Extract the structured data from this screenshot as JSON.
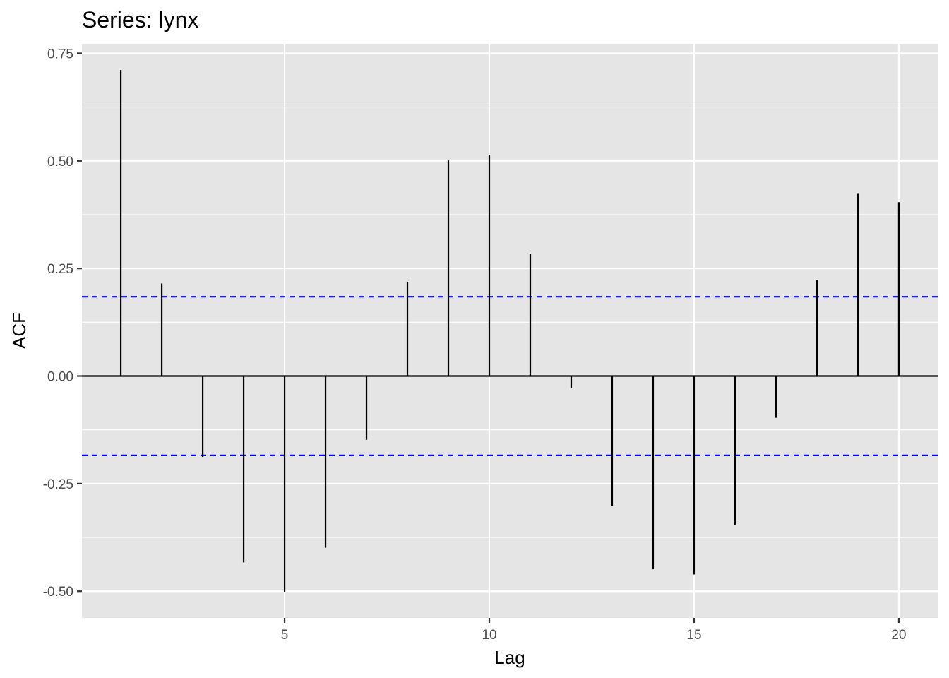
{
  "chart_data": {
    "type": "bar",
    "style": "acf-lollipop",
    "title": "Series: lynx",
    "xlabel": "Lag",
    "ylabel": "ACF",
    "x": [
      1,
      2,
      3,
      4,
      5,
      6,
      7,
      8,
      9,
      10,
      11,
      12,
      13,
      14,
      15,
      16,
      17,
      18,
      19,
      20
    ],
    "values": [
      0.711,
      0.215,
      -0.188,
      -0.433,
      -0.501,
      -0.399,
      -0.148,
      0.219,
      0.501,
      0.514,
      0.284,
      -0.028,
      -0.302,
      -0.449,
      -0.461,
      -0.346,
      -0.097,
      0.224,
      0.425,
      0.404
    ],
    "confidence_bound": 0.1843,
    "xlim": [
      0.05,
      20.95
    ],
    "ylim": [
      -0.562,
      0.772
    ],
    "xticks": [
      {
        "value": 5,
        "label": "5"
      },
      {
        "value": 10,
        "label": "10"
      },
      {
        "value": 15,
        "label": "15"
      },
      {
        "value": 20,
        "label": "20"
      }
    ],
    "yticks": [
      {
        "value": 0.75,
        "label": "0.75"
      },
      {
        "value": 0.5,
        "label": "0.50"
      },
      {
        "value": 0.25,
        "label": "0.25"
      },
      {
        "value": 0,
        "label": "0.00"
      },
      {
        "value": -0.25,
        "label": "-0.25"
      },
      {
        "value": -0.5,
        "label": "-0.50"
      }
    ],
    "grid": true,
    "colors": {
      "panel_background": "#e5e5e5",
      "grid_line": "#ffffff",
      "bar": "#000000",
      "confidence_line": "#0000ff",
      "zero_line": "#000000"
    }
  }
}
